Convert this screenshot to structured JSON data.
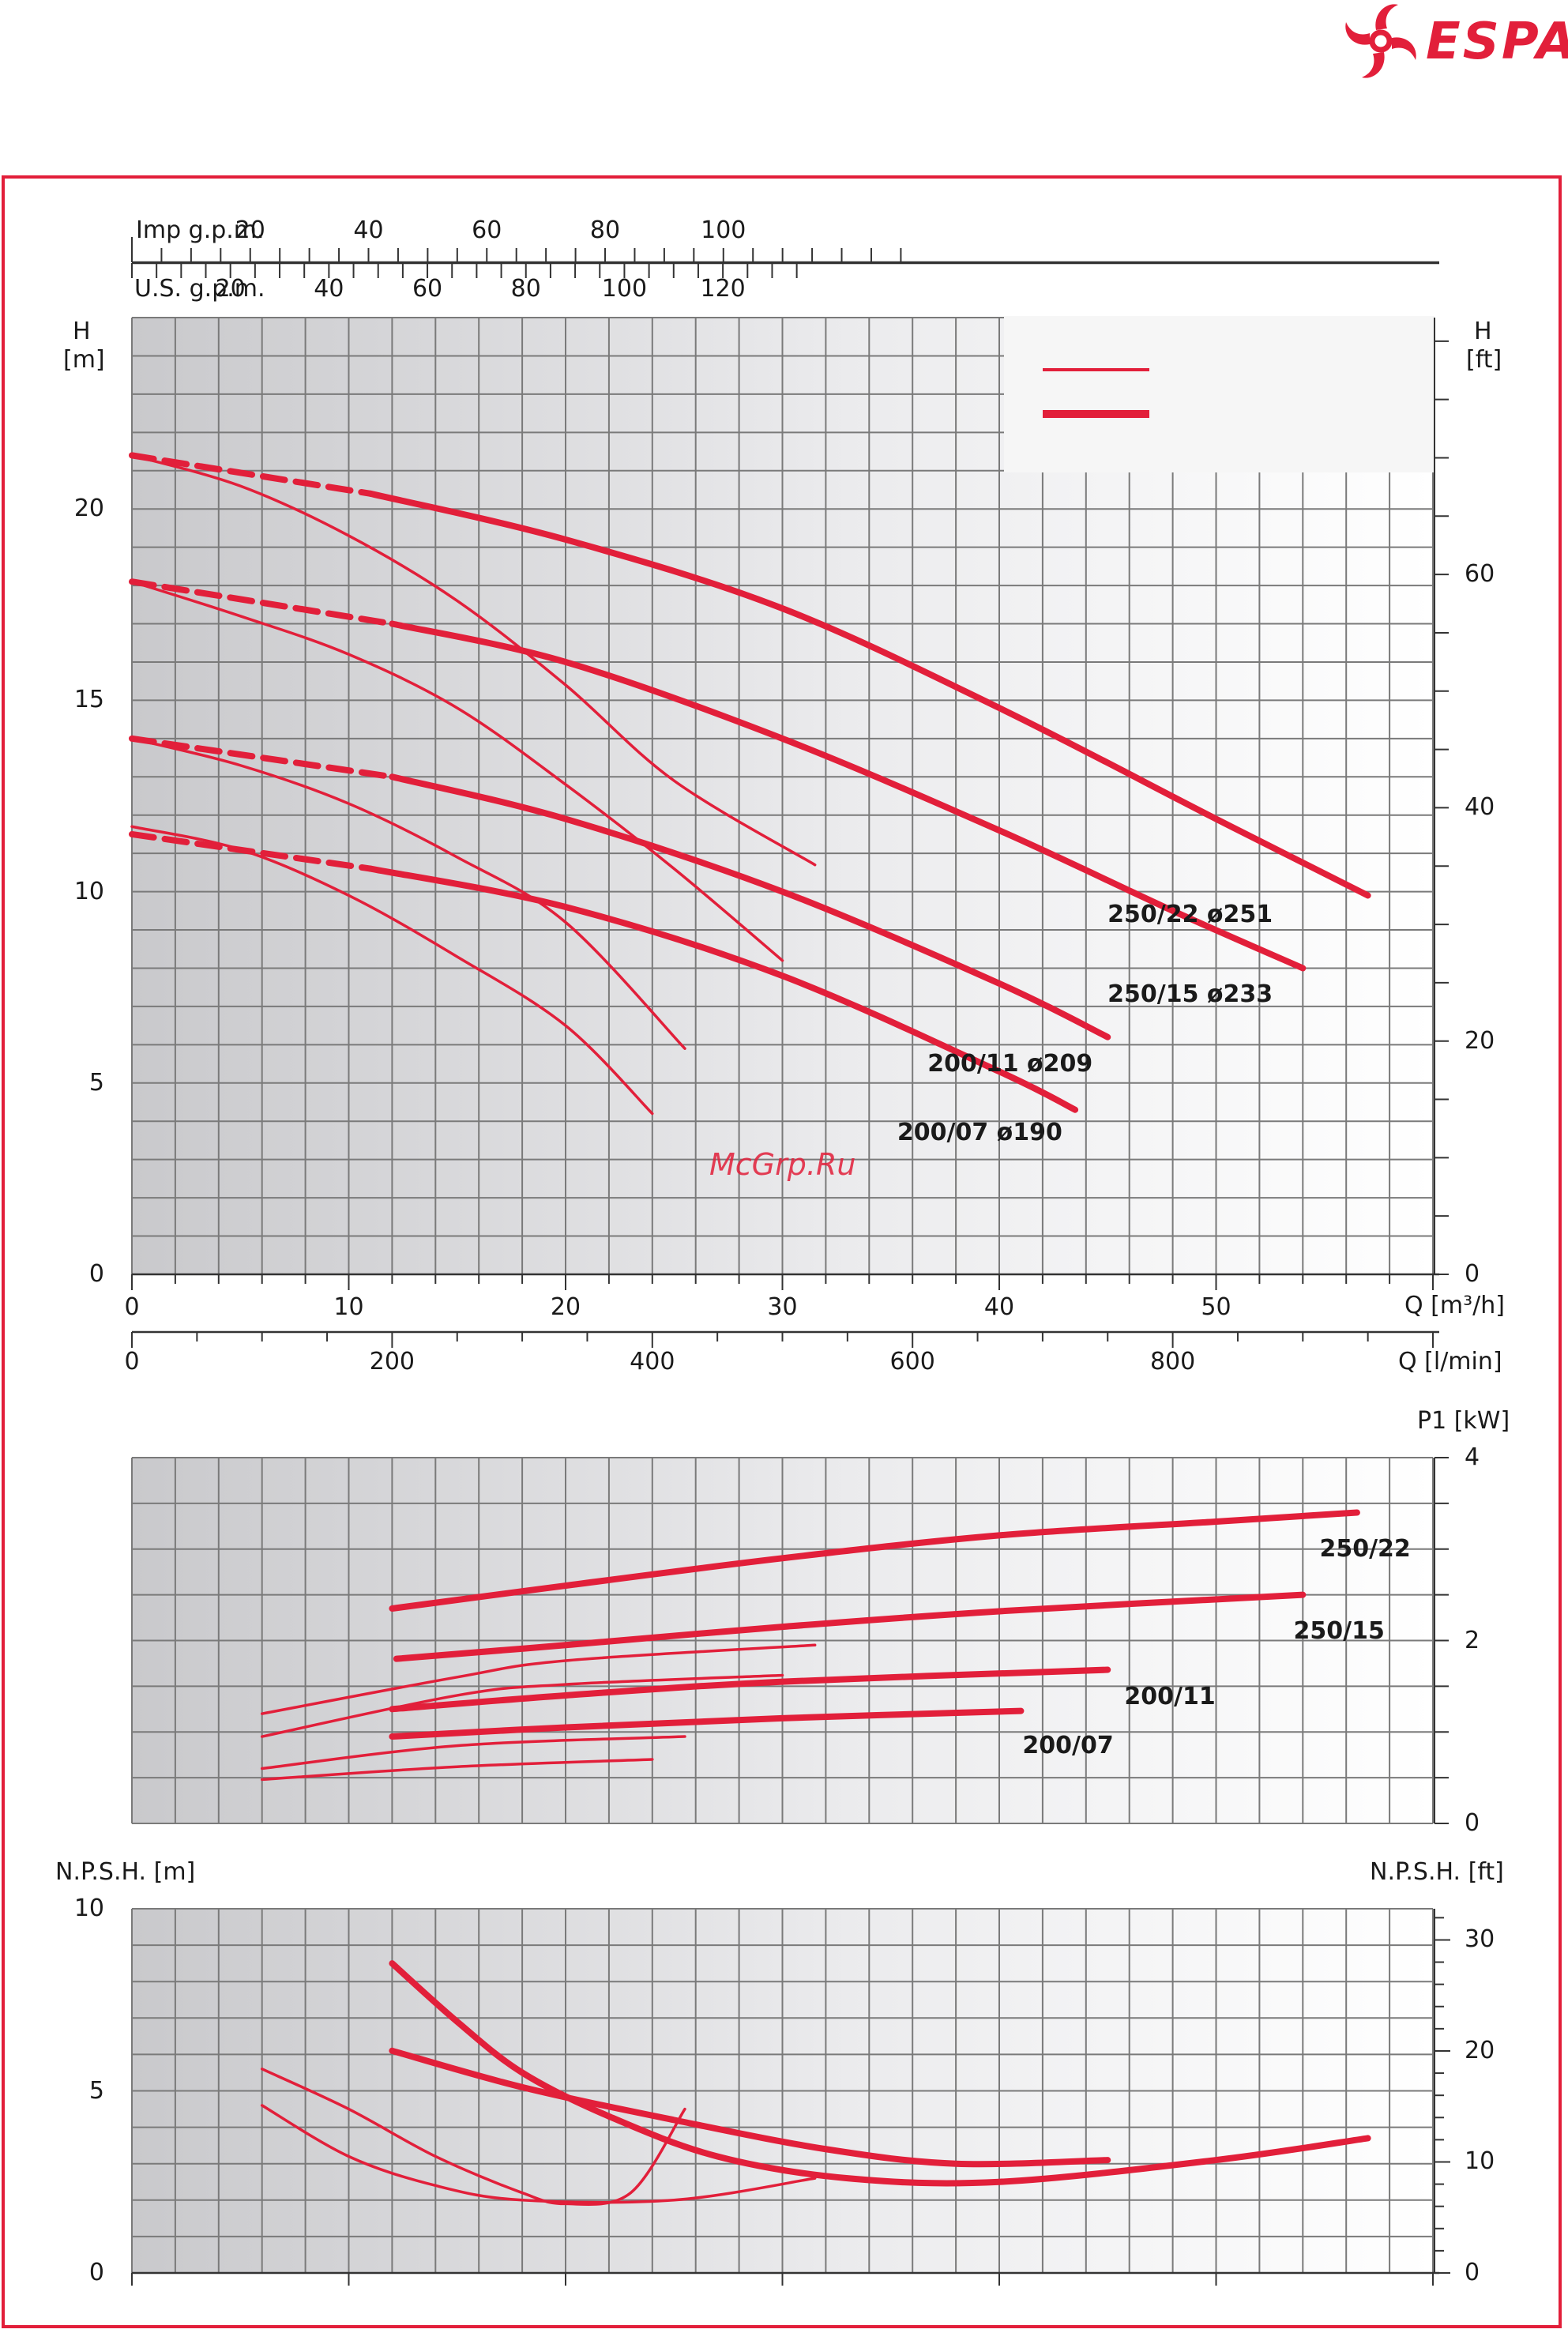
{
  "brand": {
    "name": "ESPA",
    "color": "#e21f3a"
  },
  "watermark": "McGrp.Ru",
  "legend": {
    "entries": [
      {
        "style": "thin"
      },
      {
        "style": "thick"
      }
    ]
  },
  "colors": {
    "curve": "#e21f3a",
    "grid": "#7a7a7a",
    "frame": "#e21f3a"
  },
  "chart_data": [
    {
      "id": "head",
      "type": "line",
      "x_unit_label": "Q [m³/h]",
      "x_secondary_unit_label": "Q [l/min]",
      "y_left_label": [
        "H",
        "[m]"
      ],
      "y_right_label": [
        "H",
        "[ft]"
      ],
      "top_axes": [
        {
          "label": "Imp g.p.m.",
          "ticks": [
            "20",
            "40",
            "60",
            "80",
            "100"
          ],
          "values": [
            20,
            40,
            60,
            80,
            100
          ]
        },
        {
          "label": "U.S. g.p.m.",
          "ticks": [
            "20",
            "40",
            "60",
            "80",
            "100",
            "120"
          ],
          "values": [
            20,
            40,
            60,
            80,
            100,
            120
          ]
        }
      ],
      "xlim": [
        0,
        60
      ],
      "ylim": [
        0,
        25
      ],
      "x_ticks": [
        "0",
        "10",
        "20",
        "30",
        "40",
        "50"
      ],
      "x_tick_values": [
        0,
        10,
        20,
        30,
        40,
        50
      ],
      "x2_ticks": [
        "0",
        "200",
        "400",
        "600",
        "800"
      ],
      "x2_tick_values": [
        0,
        200,
        400,
        600,
        800
      ],
      "y_ticks": [
        "0",
        "5",
        "10",
        "15",
        "20"
      ],
      "y_tick_values": [
        0,
        5,
        10,
        15,
        20
      ],
      "y_right_ticks": [
        "0",
        "20",
        "40",
        "60"
      ],
      "y_right_tick_values": [
        0,
        20,
        40,
        60
      ],
      "series": [
        {
          "name": "250/22 ø251",
          "labels": [
            "250/22",
            "ø251"
          ],
          "label_at": [
            52.5,
            9.4
          ],
          "thick": [
            [
              0,
              21.4
            ],
            [
              11,
              20.4
            ],
            [
              20,
              19.2
            ],
            [
              30,
              17.4
            ],
            [
              40,
              14.8
            ],
            [
              50,
              11.9
            ],
            [
              57,
              9.9
            ]
          ],
          "thin": [
            [
              0,
              21.4
            ],
            [
              5,
              20.6
            ],
            [
              10,
              19.3
            ],
            [
              15,
              17.6
            ],
            [
              20,
              15.4
            ],
            [
              25,
              12.9
            ],
            [
              31.5,
              10.7
            ]
          ]
        },
        {
          "name": "250/15 ø233",
          "labels": [
            "250/15",
            "ø233"
          ],
          "label_at": [
            52.5,
            7.3
          ],
          "thick": [
            [
              0,
              18.1
            ],
            [
              12,
              17.0
            ],
            [
              20,
              16.0
            ],
            [
              30,
              14.0
            ],
            [
              40,
              11.6
            ],
            [
              48,
              9.5
            ],
            [
              54,
              8.0
            ]
          ],
          "thin": [
            [
              0,
              18.1
            ],
            [
              5,
              17.2
            ],
            [
              10,
              16.2
            ],
            [
              15,
              14.8
            ],
            [
              20,
              12.8
            ],
            [
              25,
              10.6
            ],
            [
              30,
              8.2
            ]
          ]
        },
        {
          "name": "200/11 ø209",
          "labels": [
            "200/11",
            "ø209"
          ],
          "label_at": [
            44.2,
            5.5
          ],
          "thick": [
            [
              0,
              14.0
            ],
            [
              12,
              13.0
            ],
            [
              20,
              11.9
            ],
            [
              30,
              10.0
            ],
            [
              40,
              7.6
            ],
            [
              45,
              6.2
            ]
          ],
          "thin": [
            [
              0,
              14.0
            ],
            [
              5,
              13.3
            ],
            [
              10,
              12.3
            ],
            [
              15,
              10.9
            ],
            [
              20,
              9.2
            ],
            [
              25.5,
              5.9
            ]
          ]
        },
        {
          "name": "200/07 ø190",
          "labels": [
            "200/07",
            "ø190"
          ],
          "label_at": [
            42.8,
            3.7
          ],
          "thick": [
            [
              0,
              11.5
            ],
            [
              11,
              10.6
            ],
            [
              20,
              9.6
            ],
            [
              30,
              7.8
            ],
            [
              40,
              5.3
            ],
            [
              43.5,
              4.3
            ]
          ],
          "thin": [
            [
              0,
              11.7
            ],
            [
              5,
              11.1
            ],
            [
              10,
              9.9
            ],
            [
              15,
              8.3
            ],
            [
              20,
              6.5
            ],
            [
              24,
              4.2
            ]
          ]
        }
      ]
    },
    {
      "id": "power",
      "type": "line",
      "y_label": "P1 [kW]",
      "xlim": [
        0,
        60
      ],
      "ylim": [
        0,
        4
      ],
      "y_ticks": [
        "0",
        "2",
        "4"
      ],
      "y_tick_values": [
        0,
        2,
        4
      ],
      "series": [
        {
          "name": "250/22",
          "label_at": [
            55.5,
            3.0
          ],
          "thick": [
            [
              12,
              2.35
            ],
            [
              20,
              2.6
            ],
            [
              30,
              2.9
            ],
            [
              40,
              3.15
            ],
            [
              50,
              3.3
            ],
            [
              56.5,
              3.4
            ]
          ]
        },
        {
          "name": "250/15",
          "label_at": [
            54.3,
            2.1
          ],
          "thick": [
            [
              12.2,
              1.8
            ],
            [
              20,
              1.95
            ],
            [
              30,
              2.15
            ],
            [
              40,
              2.32
            ],
            [
              54,
              2.5
            ]
          ]
        },
        {
          "name": "200/11",
          "label_at": [
            46.5,
            1.38
          ],
          "thick": [
            [
              12,
              1.25
            ],
            [
              20,
              1.4
            ],
            [
              30,
              1.55
            ],
            [
              45,
              1.68
            ]
          ],
          "thin": [
            [
              6,
              1.2
            ],
            [
              15,
              1.6
            ],
            [
              20,
              1.78
            ],
            [
              31.5,
              1.95
            ]
          ]
        },
        {
          "name": "200/07",
          "label_at": [
            41.8,
            0.85
          ],
          "thick": [
            [
              12,
              0.95
            ],
            [
              20,
              1.05
            ],
            [
              30,
              1.15
            ],
            [
              41,
              1.23
            ]
          ],
          "thin_lines": [
            [
              [
                6,
                0.95
              ],
              [
                15,
                1.4
              ],
              [
                20,
                1.52
              ],
              [
                30,
                1.62
              ]
            ],
            [
              [
                6,
                0.6
              ],
              [
                15,
                0.85
              ],
              [
                25.5,
                0.95
              ]
            ],
            [
              [
                6,
                0.48
              ],
              [
                15,
                0.62
              ],
              [
                24,
                0.7
              ]
            ]
          ]
        }
      ]
    },
    {
      "id": "npsh",
      "type": "line",
      "y_left_label": "N.P.S.H. [m]",
      "y_right_label": "N.P.S.H. [ft]",
      "xlim": [
        0,
        60
      ],
      "ylim": [
        0,
        10
      ],
      "y_ticks": [
        "0",
        "5",
        "10"
      ],
      "y_tick_values": [
        0,
        5,
        10
      ],
      "y_right_ticks": [
        "0",
        "10",
        "20",
        "30"
      ],
      "y_right_tick_values": [
        0,
        10,
        20,
        30
      ],
      "thick_lines": [
        [
          [
            12,
            8.5
          ],
          [
            15,
            6.9
          ],
          [
            18,
            5.5
          ],
          [
            22,
            4.3
          ],
          [
            27,
            3.2
          ],
          [
            33,
            2.6
          ],
          [
            40,
            2.5
          ],
          [
            50,
            3.1
          ],
          [
            57,
            3.7
          ]
        ],
        [
          [
            12,
            6.1
          ],
          [
            18,
            5.1
          ],
          [
            25,
            4.2
          ],
          [
            32,
            3.4
          ],
          [
            38,
            3.0
          ],
          [
            45,
            3.1
          ]
        ]
      ],
      "thin_lines": [
        [
          [
            6,
            5.6
          ],
          [
            10,
            4.5
          ],
          [
            14,
            3.2
          ],
          [
            18,
            2.2
          ],
          [
            20,
            1.9
          ],
          [
            23,
            2.2
          ],
          [
            25.5,
            4.5
          ]
        ],
        [
          [
            6,
            4.6
          ],
          [
            10,
            3.2
          ],
          [
            14,
            2.4
          ],
          [
            18,
            2.0
          ],
          [
            25,
            2.0
          ],
          [
            31.5,
            2.6
          ]
        ]
      ]
    }
  ]
}
